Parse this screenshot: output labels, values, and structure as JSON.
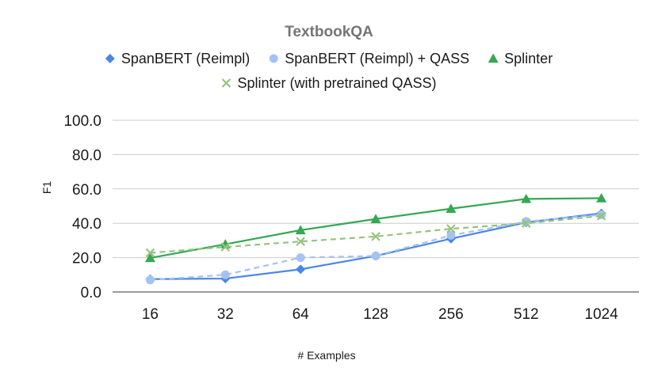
{
  "chart_data": {
    "type": "line",
    "title": "TextbookQA",
    "xlabel": "# Examples",
    "ylabel": "F1",
    "categories": [
      "16",
      "32",
      "64",
      "128",
      "256",
      "512",
      "1024"
    ],
    "yticks": [
      "0.0",
      "20.0",
      "40.0",
      "60.0",
      "80.0",
      "100.0"
    ],
    "ylim": [
      0,
      100
    ],
    "grid": true,
    "legend_position": "top",
    "series": [
      {
        "name": "SpanBERT (Reimpl)",
        "marker": "diamond",
        "color": "#4a86e8",
        "dashed": false,
        "values": [
          7.5,
          7.8,
          13.2,
          21.0,
          31.0,
          40.5,
          45.8
        ]
      },
      {
        "name": "SpanBERT (Reimpl) + QASS",
        "marker": "circle",
        "color": "#a4c2f4",
        "dashed": true,
        "values": [
          7.0,
          10.0,
          20.0,
          21.0,
          33.0,
          41.0,
          45.0
        ]
      },
      {
        "name": "Splinter",
        "marker": "triangle",
        "color": "#34a853",
        "dashed": false,
        "values": [
          19.8,
          27.8,
          36.0,
          42.5,
          48.5,
          54.2,
          54.6
        ]
      },
      {
        "name": "Splinter (with pretrained QASS)",
        "marker": "x",
        "color": "#93c47d",
        "dashed": true,
        "values": [
          22.8,
          26.2,
          29.4,
          32.3,
          36.8,
          40.0,
          44.3
        ]
      }
    ]
  }
}
